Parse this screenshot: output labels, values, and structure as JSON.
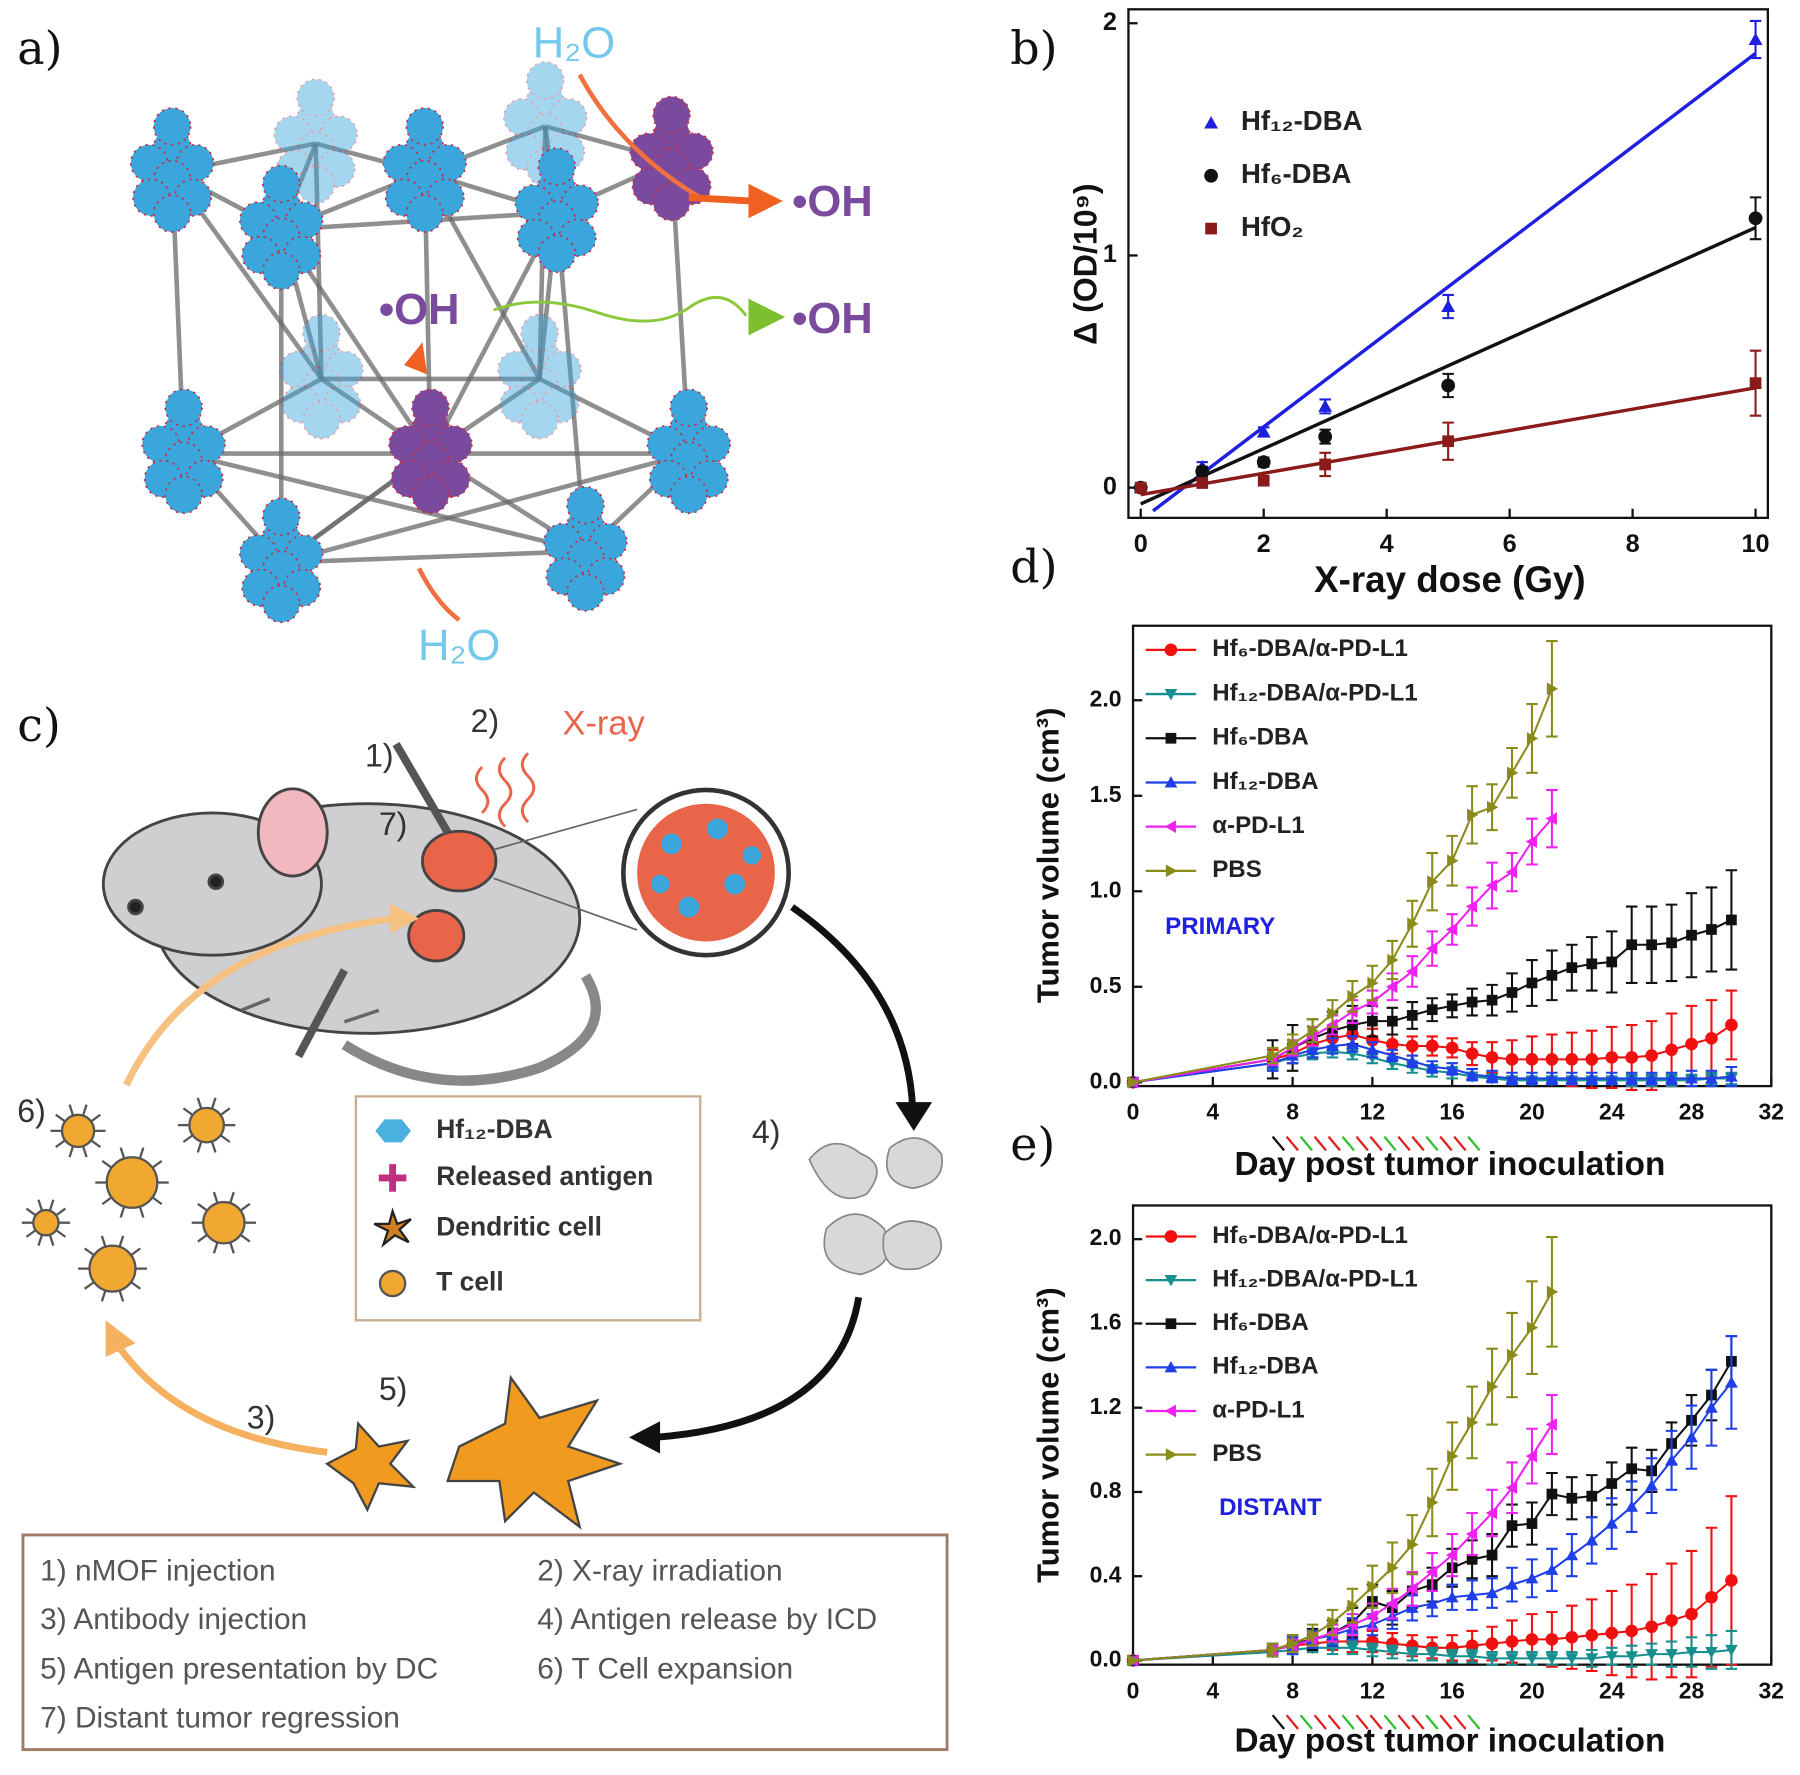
{
  "panel_a": {
    "label": "a)",
    "h2o_top": "H₂O",
    "oh_right": "•OH",
    "oh_center": "•OH",
    "oh_green": "•OH",
    "h2o_bottom": "H₂O"
  },
  "panel_c": {
    "label": "c)",
    "markers": [
      "1)",
      "2)",
      "3)",
      "4)",
      "5)",
      "6)",
      "7)"
    ],
    "xray": "X-ray",
    "legend": [
      "Hf₁₂-DBA",
      "Released antigen",
      "Dendritic cell",
      "T cell"
    ],
    "steps": [
      "1) nMOF injection",
      "2) X-ray irradiation",
      "3) Antibody injection",
      "4) Antigen release by ICD",
      "5) Antigen presentation by DC",
      "6) T Cell expansion",
      "7) Distant tumor regression"
    ]
  },
  "chart_data": [
    {
      "type": "scatter",
      "panel_label": "b)",
      "x_label": "X-ray dose (Gy)",
      "y_label": "Δ (OD/10⁹)",
      "xlim": [
        -0.2,
        10.2
      ],
      "ylim": [
        -0.13,
        2.06
      ],
      "xticks": [
        0,
        2,
        4,
        6,
        8,
        10
      ],
      "yticks": [
        0,
        1,
        2
      ],
      "legend": "upper left",
      "x": [
        0,
        1,
        2,
        3,
        5,
        10
      ],
      "series": [
        {
          "name": "Hf₁₂-DBA",
          "color": "#1f1fe0",
          "marker": "triangle-up",
          "values": [
            0,
            0.09,
            0.24,
            0.35,
            0.78,
            1.93
          ],
          "errors": [
            0.02,
            0.02,
            0.02,
            0.03,
            0.05,
            0.08
          ],
          "fit_x": [
            0.2,
            10
          ],
          "fit_values": [
            -0.1,
            1.87
          ]
        },
        {
          "name": "Hf₆-DBA",
          "color": "#111111",
          "marker": "circle",
          "values": [
            0,
            0.07,
            0.11,
            0.22,
            0.44,
            1.16
          ],
          "errors": [
            0.01,
            0.02,
            0.02,
            0.03,
            0.05,
            0.09
          ],
          "fit_x": [
            0,
            10
          ],
          "fit_values": [
            -0.07,
            1.12
          ]
        },
        {
          "name": "HfO₂",
          "color": "#8b1a1a",
          "marker": "square",
          "values": [
            0,
            0.02,
            0.03,
            0.1,
            0.2,
            0.45
          ],
          "errors": [
            0.01,
            0.01,
            0.02,
            0.05,
            0.08,
            0.14
          ],
          "fit_x": [
            0,
            10
          ],
          "fit_values": [
            -0.03,
            0.43
          ]
        }
      ]
    },
    {
      "type": "line",
      "panel_label": "d)",
      "x_label": "Day post tumor inoculation",
      "y_label": "Tumor volume (cm³)",
      "annotation": "PRIMARY",
      "xlim": [
        0,
        32
      ],
      "ylim": [
        -0.02,
        2.39
      ],
      "xticks": [
        0,
        4,
        8,
        12,
        16,
        20,
        24,
        28,
        32
      ],
      "yticks": [
        {
          "value": 0,
          "label": "0.0"
        },
        {
          "value": 0.5,
          "label": "0.5"
        },
        {
          "value": 1,
          "label": "1.0"
        },
        {
          "value": 1.5,
          "label": "1.5"
        },
        {
          "value": 2,
          "label": "2.0"
        }
      ],
      "legend": "upper left",
      "x": [
        0,
        7,
        8,
        9,
        10,
        11,
        12,
        13,
        14,
        15,
        16,
        17,
        18,
        19,
        20,
        21,
        22,
        23,
        24,
        25,
        26,
        27,
        28,
        29,
        30
      ],
      "series": [
        {
          "name": "Hf₆-DBA/α-PD-L1",
          "color": "#f01010",
          "marker": "circle",
          "values": [
            0,
            0.12,
            0.15,
            0.2,
            0.23,
            0.25,
            0.22,
            0.2,
            0.19,
            0.19,
            0.18,
            0.15,
            0.13,
            0.12,
            0.12,
            0.12,
            0.12,
            0.12,
            0.13,
            0.13,
            0.14,
            0.17,
            0.2,
            0.23,
            0.3
          ],
          "errors": [
            0,
            0.05,
            0.05,
            0.05,
            0.06,
            0.06,
            0.06,
            0.05,
            0.05,
            0.05,
            0.05,
            0.06,
            0.08,
            0.1,
            0.12,
            0.13,
            0.14,
            0.15,
            0.16,
            0.17,
            0.18,
            0.19,
            0.2,
            0.2,
            0.18
          ]
        },
        {
          "name": "Hf₁₂-DBA/α-PD-L1",
          "color": "#178f8f",
          "marker": "triangle-down",
          "values": [
            0,
            0.1,
            0.13,
            0.15,
            0.16,
            0.15,
            0.13,
            0.1,
            0.08,
            0.06,
            0.05,
            0.03,
            0.02,
            0.01,
            0.01,
            0.01,
            0.01,
            0.01,
            0.01,
            0.01,
            0.01,
            0.01,
            0.01,
            0.02,
            0.02
          ],
          "errors": [
            0,
            0.03,
            0.03,
            0.03,
            0.03,
            0.03,
            0.03,
            0.03,
            0.03,
            0.03,
            0.03,
            0.02,
            0.02,
            0.02,
            0.02,
            0.02,
            0.02,
            0.02,
            0.02,
            0.03,
            0.03,
            0.03,
            0.03,
            0.03,
            0.03
          ]
        },
        {
          "name": "Hf₆-DBA",
          "color": "#111111",
          "marker": "square",
          "values": [
            0,
            0.12,
            0.18,
            0.23,
            0.27,
            0.3,
            0.32,
            0.32,
            0.35,
            0.38,
            0.4,
            0.42,
            0.43,
            0.47,
            0.52,
            0.56,
            0.6,
            0.62,
            0.63,
            0.72,
            0.72,
            0.73,
            0.77,
            0.8,
            0.85
          ],
          "errors": [
            0,
            0.1,
            0.12,
            0.1,
            0.1,
            0.1,
            0.08,
            0.07,
            0.07,
            0.06,
            0.06,
            0.07,
            0.08,
            0.1,
            0.12,
            0.13,
            0.12,
            0.14,
            0.16,
            0.2,
            0.2,
            0.2,
            0.22,
            0.22,
            0.26
          ]
        },
        {
          "name": "Hf₁₂-DBA",
          "color": "#1f3fe8",
          "marker": "triangle-up",
          "values": [
            0,
            0.1,
            0.14,
            0.17,
            0.19,
            0.2,
            0.17,
            0.14,
            0.11,
            0.08,
            0.07,
            0.04,
            0.03,
            0.02,
            0.02,
            0.02,
            0.02,
            0.02,
            0.02,
            0.02,
            0.02,
            0.02,
            0.02,
            0.02,
            0.03
          ],
          "errors": [
            0,
            0.04,
            0.04,
            0.04,
            0.04,
            0.04,
            0.04,
            0.03,
            0.03,
            0.03,
            0.03,
            0.03,
            0.03,
            0.03,
            0.03,
            0.03,
            0.03,
            0.03,
            0.03,
            0.03,
            0.03,
            0.03,
            0.04,
            0.04,
            0.05
          ]
        },
        {
          "name": "α-PD-L1",
          "color": "#ee22ee",
          "marker": "triangle-left",
          "values": [
            0,
            0.12,
            0.18,
            0.24,
            0.3,
            0.37,
            0.42,
            0.5,
            0.58,
            0.7,
            0.8,
            0.92,
            1.03,
            1.1,
            1.26,
            1.38,
            null,
            null,
            null,
            null,
            null,
            null,
            null,
            null,
            null
          ],
          "errors": [
            0,
            0.03,
            0.04,
            0.05,
            0.05,
            0.06,
            0.06,
            0.07,
            0.08,
            0.09,
            0.08,
            0.1,
            0.12,
            0.1,
            0.12,
            0.15,
            null,
            null,
            null,
            null,
            null,
            null,
            null,
            null,
            null
          ]
        },
        {
          "name": "PBS",
          "color": "#8b8b1a",
          "marker": "triangle-right",
          "values": [
            0,
            0.14,
            0.2,
            0.27,
            0.36,
            0.45,
            0.52,
            0.64,
            0.83,
            1.05,
            1.16,
            1.4,
            1.44,
            1.62,
            1.8,
            2.06,
            null,
            null,
            null,
            null,
            null,
            null,
            null,
            null,
            null
          ],
          "errors": [
            0,
            0.04,
            0.05,
            0.06,
            0.07,
            0.08,
            0.09,
            0.1,
            0.12,
            0.15,
            0.13,
            0.15,
            0.12,
            0.13,
            0.18,
            0.25,
            null,
            null,
            null,
            null,
            null,
            null,
            null,
            null,
            null
          ]
        }
      ]
    },
    {
      "type": "line",
      "panel_label": "e)",
      "x_label": "Day post tumor inoculation",
      "y_label": "Tumor volume (cm³)",
      "annotation": "DISTANT",
      "xlim": [
        0,
        32
      ],
      "ylim": [
        -0.02,
        2.16
      ],
      "xticks": [
        0,
        4,
        8,
        12,
        16,
        20,
        24,
        28,
        32
      ],
      "yticks": [
        {
          "value": 0,
          "label": "0.0"
        },
        {
          "value": 0.4,
          "label": "0.4"
        },
        {
          "value": 0.8,
          "label": "0.8"
        },
        {
          "value": 1.2,
          "label": "1.2"
        },
        {
          "value": 1.6,
          "label": "1.6"
        },
        {
          "value": 2,
          "label": "2.0"
        }
      ],
      "legend": "upper left",
      "x": [
        0,
        7,
        8,
        9,
        10,
        11,
        12,
        13,
        14,
        15,
        16,
        17,
        18,
        19,
        20,
        21,
        22,
        23,
        24,
        25,
        26,
        27,
        28,
        29,
        30
      ],
      "series": [
        {
          "name": "Hf₆-DBA/α-PD-L1",
          "color": "#f01010",
          "marker": "circle",
          "values": [
            0,
            0.05,
            0.07,
            0.08,
            0.09,
            0.09,
            0.09,
            0.08,
            0.07,
            0.06,
            0.06,
            0.07,
            0.08,
            0.09,
            0.1,
            0.1,
            0.11,
            0.12,
            0.13,
            0.14,
            0.16,
            0.19,
            0.22,
            0.3,
            0.38
          ],
          "errors": [
            0,
            0.03,
            0.03,
            0.04,
            0.04,
            0.05,
            0.05,
            0.05,
            0.05,
            0.05,
            0.06,
            0.07,
            0.08,
            0.1,
            0.12,
            0.13,
            0.15,
            0.17,
            0.2,
            0.22,
            0.25,
            0.27,
            0.3,
            0.33,
            0.4
          ]
        },
        {
          "name": "Hf₁₂-DBA/α-PD-L1",
          "color": "#178f8f",
          "marker": "triangle-down",
          "values": [
            0,
            0.04,
            0.05,
            0.06,
            0.06,
            0.06,
            0.05,
            0.04,
            0.03,
            0.03,
            0.02,
            0.02,
            0.01,
            0.01,
            0.01,
            0.01,
            0.01,
            0.01,
            0.02,
            0.02,
            0.03,
            0.03,
            0.04,
            0.04,
            0.05
          ],
          "errors": [
            0,
            0.02,
            0.02,
            0.02,
            0.03,
            0.03,
            0.03,
            0.03,
            0.03,
            0.03,
            0.03,
            0.03,
            0.03,
            0.03,
            0.03,
            0.03,
            0.03,
            0.04,
            0.04,
            0.05,
            0.05,
            0.06,
            0.07,
            0.08,
            0.09
          ]
        },
        {
          "name": "Hf₆-DBA",
          "color": "#111111",
          "marker": "square",
          "values": [
            0,
            0.05,
            0.08,
            0.1,
            0.13,
            0.18,
            0.28,
            0.25,
            0.33,
            0.36,
            0.44,
            0.48,
            0.5,
            0.64,
            0.65,
            0.79,
            0.77,
            0.78,
            0.84,
            0.91,
            0.9,
            1.03,
            1.14,
            1.26,
            1.42
          ],
          "errors": [
            0,
            0.03,
            0.04,
            0.05,
            0.06,
            0.07,
            0.08,
            0.08,
            0.08,
            0.08,
            0.09,
            0.09,
            0.1,
            0.1,
            0.1,
            0.1,
            0.1,
            0.1,
            0.1,
            0.1,
            0.1,
            0.1,
            0.12,
            0.12,
            0.12
          ]
        },
        {
          "name": "Hf₁₂-DBA",
          "color": "#1f3fe8",
          "marker": "triangle-up",
          "values": [
            0,
            0.05,
            0.07,
            0.1,
            0.12,
            0.15,
            0.17,
            0.21,
            0.25,
            0.27,
            0.3,
            0.31,
            0.32,
            0.36,
            0.39,
            0.43,
            0.5,
            0.57,
            0.65,
            0.73,
            0.83,
            0.95,
            1.06,
            1.2,
            1.32
          ],
          "errors": [
            0,
            0.03,
            0.04,
            0.04,
            0.05,
            0.05,
            0.05,
            0.06,
            0.06,
            0.06,
            0.06,
            0.07,
            0.07,
            0.08,
            0.09,
            0.1,
            0.1,
            0.11,
            0.12,
            0.12,
            0.13,
            0.14,
            0.15,
            0.18,
            0.22
          ]
        },
        {
          "name": "α-PD-L1",
          "color": "#ee22ee",
          "marker": "triangle-left",
          "values": [
            0,
            0.05,
            0.07,
            0.1,
            0.13,
            0.17,
            0.21,
            0.27,
            0.34,
            0.42,
            0.5,
            0.6,
            0.7,
            0.82,
            0.97,
            1.12,
            null,
            null,
            null,
            null,
            null,
            null,
            null,
            null,
            null
          ],
          "errors": [
            0,
            0.02,
            0.03,
            0.03,
            0.04,
            0.05,
            0.06,
            0.07,
            0.08,
            0.09,
            0.1,
            0.1,
            0.11,
            0.12,
            0.13,
            0.14,
            null,
            null,
            null,
            null,
            null,
            null,
            null,
            null,
            null
          ]
        },
        {
          "name": "PBS",
          "color": "#8b8b1a",
          "marker": "triangle-right",
          "values": [
            0,
            0.05,
            0.08,
            0.12,
            0.18,
            0.26,
            0.35,
            0.44,
            0.55,
            0.75,
            0.97,
            1.13,
            1.3,
            1.45,
            1.58,
            1.75,
            null,
            null,
            null,
            null,
            null,
            null,
            null,
            null,
            null
          ],
          "errors": [
            0,
            0.03,
            0.04,
            0.05,
            0.06,
            0.08,
            0.1,
            0.12,
            0.14,
            0.16,
            0.16,
            0.17,
            0.18,
            0.2,
            0.22,
            0.26,
            null,
            null,
            null,
            null,
            null,
            null,
            null,
            null,
            null
          ]
        }
      ]
    }
  ]
}
